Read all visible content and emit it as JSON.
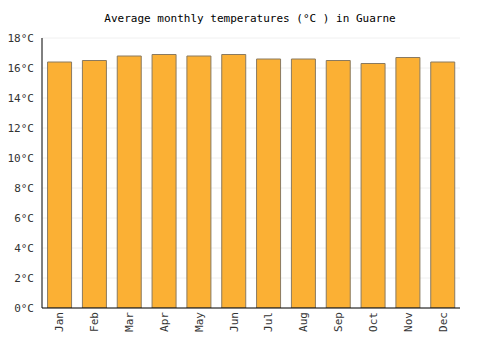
{
  "chart_data": {
    "type": "bar",
    "title": "Average monthly temperatures (°C ) in Guarne",
    "categories": [
      "Jan",
      "Feb",
      "Mar",
      "Apr",
      "May",
      "Jun",
      "Jul",
      "Aug",
      "Sep",
      "Oct",
      "Nov",
      "Dec"
    ],
    "values": [
      16.4,
      16.5,
      16.8,
      16.9,
      16.8,
      16.9,
      16.6,
      16.6,
      16.5,
      16.3,
      16.7,
      16.4
    ],
    "color": "#fbb034",
    "ylim": [
      0,
      18
    ],
    "yticks": [
      {
        "value": 0,
        "label": "0°C"
      },
      {
        "value": 2,
        "label": "2°C"
      },
      {
        "value": 4,
        "label": "4°C"
      },
      {
        "value": 6,
        "label": "6°C"
      },
      {
        "value": 8,
        "label": "8°C"
      },
      {
        "value": 10,
        "label": "10°C"
      },
      {
        "value": 12,
        "label": "12°C"
      },
      {
        "value": 14,
        "label": "14°C"
      },
      {
        "value": 16,
        "label": "16°C"
      },
      {
        "value": 18,
        "label": "18°C"
      }
    ],
    "grid": true
  }
}
